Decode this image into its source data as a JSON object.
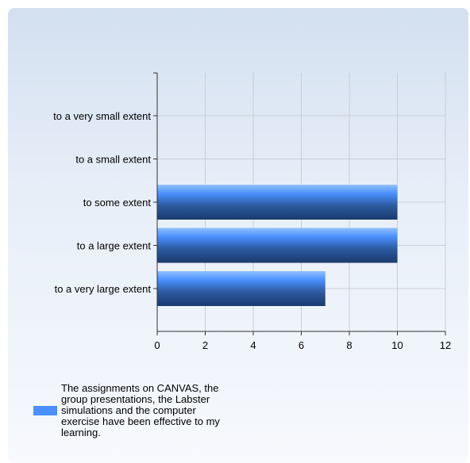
{
  "chart_data": {
    "type": "bar",
    "orientation": "horizontal",
    "categories": [
      "to a very small extent",
      "to a small extent",
      "to some extent",
      "to a large extent",
      "to a very large extent"
    ],
    "series": [
      {
        "name": "The assignments on CANVAS, the group presentations, the Labster simulations and the computer exercise have been effective to my learning.",
        "values": [
          0,
          0,
          10,
          10,
          7
        ],
        "color": "#4a90ff"
      }
    ],
    "xlim": [
      0,
      12
    ],
    "xticks": [
      0,
      2,
      4,
      6,
      8,
      10,
      12
    ],
    "grid": true,
    "legend_position": "bottom-left"
  }
}
